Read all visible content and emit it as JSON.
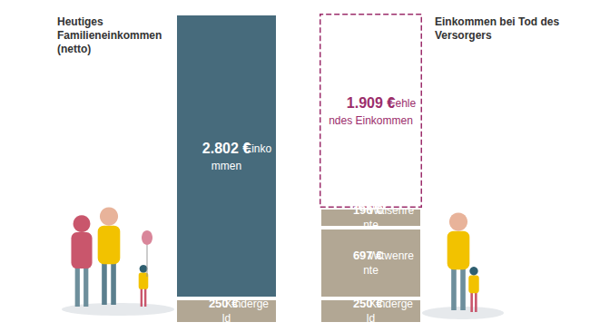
{
  "chart_data": {
    "type": "bar",
    "stacked": true,
    "data_labels": true,
    "tick_labels": false,
    "grid": false,
    "categories": [
      "Heutiges Familieneinkommen (netto)",
      "Einkommen bei Tod des Versorgers"
    ],
    "ylim": [
      0,
      3052
    ],
    "series": [
      {
        "name": "Kindergeld",
        "color": "#b2a794",
        "values": [
          250,
          250
        ],
        "value_labels": [
          "250 €",
          "250 €"
        ]
      },
      {
        "name": "Einkommen",
        "color": "#476b7c",
        "values": [
          2802,
          null
        ],
        "value_labels": [
          "2.802 €",
          null
        ]
      },
      {
        "name": "Witwenrente",
        "color": "#b2a794",
        "values": [
          null,
          697
        ],
        "value_labels": [
          null,
          "697 €"
        ]
      },
      {
        "name": "Waisenrente",
        "color": "#b2a794",
        "values": [
          null,
          196
        ],
        "value_labels": [
          null,
          "196 €"
        ]
      },
      {
        "name": "Fehlendes Einkommen",
        "color": "#9b2d6b",
        "line_style": "dashed",
        "values": [
          null,
          1909
        ],
        "value_labels": [
          null,
          "1.909 €"
        ]
      }
    ]
  }
}
